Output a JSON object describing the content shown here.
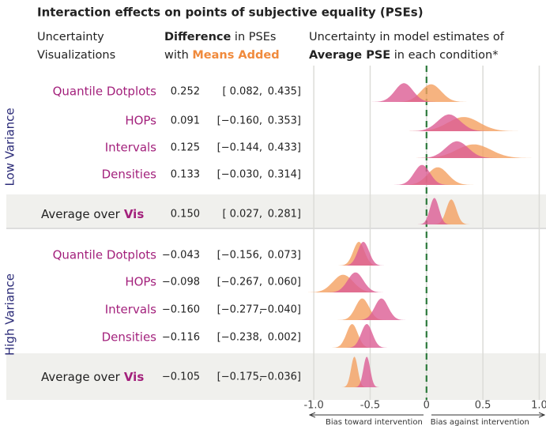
{
  "chart_data": {
    "type": "ridgeline",
    "title": "Interaction effects on points of subjective equality (PSEs)",
    "headers": [
      {
        "lines": [
          [
            {
              "text": "Uncertainty"
            }
          ],
          [
            {
              "text": "Visualizations"
            }
          ]
        ]
      },
      {
        "lines": [
          [
            {
              "text": "Difference",
              "style": "bold"
            },
            {
              "text": " in PSEs"
            }
          ],
          [
            {
              "text": "with "
            },
            {
              "text": "Means Added",
              "style": "orange"
            }
          ]
        ]
      },
      {
        "lines": [
          [
            {
              "text": "Uncertainty in model estimates of"
            }
          ],
          [
            {
              "text": "Average PSE",
              "style": "bold"
            },
            {
              "text": " in each condition*"
            }
          ]
        ]
      }
    ],
    "series_colors": [
      "#dc5d94",
      "#f4a060"
    ],
    "xlim": [
      -1.05,
      1.06
    ],
    "xticks": [
      {
        "value": -1,
        "label": "-1.0"
      },
      -0.5,
      0,
      0.5,
      {
        "value": 1,
        "label": "1.0"
      }
    ],
    "grid": true,
    "axis_notes": [
      "Bias toward intervention",
      "Bias against intervention"
    ],
    "groups": [
      {
        "name": "Low Variance",
        "rows": [
          {
            "label": "Quantile Dotplots",
            "diff": "0.252",
            "ci_low": "[ 0.082,",
            "ci_high": "0.435]",
            "pse": [
              -0.2,
              0.04
            ],
            "sd": [
              0.08,
              0.09
            ]
          },
          {
            "label": "HOPs",
            "diff": "0.091",
            "ci_low": "[−0.160,",
            "ci_high": "0.353]",
            "pse": [
              0.2,
              0.33
            ],
            "sd": [
              0.1,
              0.14
            ]
          },
          {
            "label": "Intervals",
            "diff": "0.125",
            "ci_low": "[−0.144,",
            "ci_high": "0.433]",
            "pse": [
              0.27,
              0.42
            ],
            "sd": [
              0.1,
              0.15
            ]
          },
          {
            "label": "Densities",
            "diff": "0.133",
            "ci_low": "[−0.030,",
            "ci_high": "0.314]",
            "pse": [
              -0.04,
              0.1
            ],
            "sd": [
              0.07,
              0.09
            ]
          }
        ],
        "average": {
          "label": "Average over",
          "label_em": "Vis",
          "diff": "0.150",
          "ci_low": "[ 0.027,",
          "ci_high": "0.281]",
          "pse": [
            0.07,
            0.22
          ],
          "sd": [
            0.04,
            0.045
          ]
        }
      },
      {
        "name": "High Variance",
        "rows": [
          {
            "label": "Quantile Dotplots",
            "diff": "−0.043",
            "ci_low": "[−0.156,",
            "ci_high": "0.073]",
            "pse": [
              -0.56,
              -0.6
            ],
            "sd": [
              0.05,
              0.05
            ]
          },
          {
            "label": "HOPs",
            "diff": "−0.098",
            "ci_low": "[−0.267,",
            "ci_high": "0.060]",
            "pse": [
              -0.63,
              -0.74
            ],
            "sd": [
              0.07,
              0.09
            ]
          },
          {
            "label": "Intervals",
            "diff": "−0.160",
            "ci_low": "[−0.277,",
            "ci_high": "−0.040]",
            "pse": [
              -0.4,
              -0.57
            ],
            "sd": [
              0.06,
              0.06
            ]
          },
          {
            "label": "Densities",
            "diff": "−0.116",
            "ci_low": "[−0.238,",
            "ci_high": "0.002]",
            "pse": [
              -0.53,
              -0.66
            ],
            "sd": [
              0.05,
              0.05
            ]
          }
        ],
        "average": {
          "label": "Average over",
          "label_em": "Vis",
          "diff": "−0.105",
          "ci_low": "[−0.175,",
          "ci_high": "−0.036]",
          "pse": [
            -0.53,
            -0.64
          ],
          "sd": [
            0.03,
            0.03
          ]
        }
      }
    ]
  }
}
